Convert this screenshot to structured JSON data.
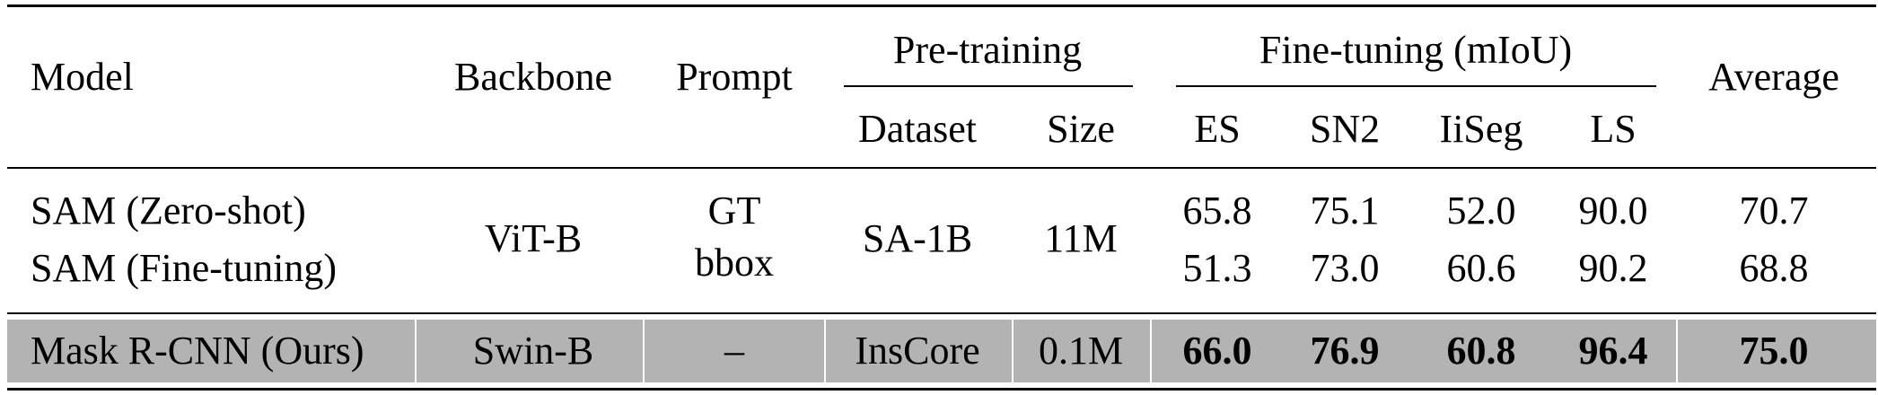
{
  "header": {
    "model": "Model",
    "backbone": "Backbone",
    "prompt": "Prompt",
    "pretraining": "Pre-training",
    "finetuning": "Fine-tuning (mIoU)",
    "average": "Average",
    "dataset": "Dataset",
    "size": "Size",
    "es": "ES",
    "sn2": "SN2",
    "iiseg": "IiSeg",
    "ls": "LS"
  },
  "group_sam": {
    "backbone": "ViT-B",
    "prompt_line1": "GT",
    "prompt_line2": "bbox",
    "dataset": "SA-1B",
    "size": "11M",
    "rows": [
      {
        "model": "SAM (Zero-shot)",
        "es": "65.8",
        "sn2": "75.1",
        "iiseg": "52.0",
        "ls": "90.0",
        "avg": "70.7"
      },
      {
        "model": "SAM (Fine-tuning)",
        "es": "51.3",
        "sn2": "73.0",
        "iiseg": "60.6",
        "ls": "90.2",
        "avg": "68.8"
      }
    ]
  },
  "ours": {
    "model": "Mask R-CNN (Ours)",
    "backbone": "Swin-B",
    "prompt": "–",
    "dataset": "InsCore",
    "size": "0.1M",
    "es": "66.0",
    "sn2": "76.9",
    "iiseg": "60.8",
    "ls": "96.4",
    "avg": "75.0"
  },
  "colors": {
    "highlight_row": "#b3b3b3",
    "rule": "#000000"
  }
}
